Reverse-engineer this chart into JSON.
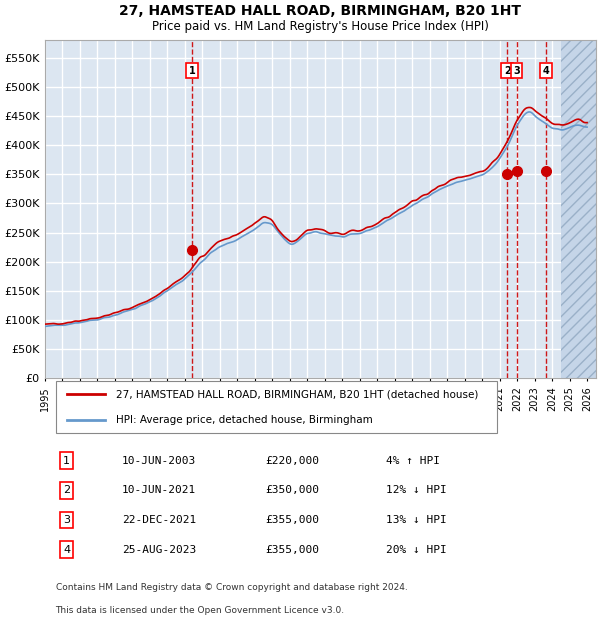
{
  "title": "27, HAMSTEAD HALL ROAD, BIRMINGHAM, B20 1HT",
  "subtitle": "Price paid vs. HM Land Registry's House Price Index (HPI)",
  "footer1": "Contains HM Land Registry data © Crown copyright and database right 2024.",
  "footer2": "This data is licensed under the Open Government Licence v3.0.",
  "legend_red": "27, HAMSTEAD HALL ROAD, BIRMINGHAM, B20 1HT (detached house)",
  "legend_blue": "HPI: Average price, detached house, Birmingham",
  "transactions": [
    {
      "num": 1,
      "date": "10-JUN-2003",
      "price": 220000,
      "pct": "4%",
      "dir": "↑",
      "x_year": 2003.44
    },
    {
      "num": 2,
      "date": "10-JUN-2021",
      "price": 350000,
      "pct": "12%",
      "dir": "↓",
      "x_year": 2021.44
    },
    {
      "num": 3,
      "date": "22-DEC-2021",
      "price": 355000,
      "pct": "13%",
      "dir": "↓",
      "x_year": 2021.97
    },
    {
      "num": 4,
      "date": "25-AUG-2023",
      "price": 355000,
      "pct": "20%",
      "dir": "↓",
      "x_year": 2023.65
    }
  ],
  "ylim": [
    0,
    580000
  ],
  "xlim_start": 1995.0,
  "xlim_end": 2026.5,
  "bg_color": "#dce6f1",
  "plot_bg": "#dce6f1",
  "red_color": "#cc0000",
  "blue_color": "#6699cc",
  "hatch_color": "#aabbcc",
  "grid_color": "#ffffff",
  "dashed_line_color": "#cc0000",
  "yticks": [
    0,
    50000,
    100000,
    150000,
    200000,
    250000,
    300000,
    350000,
    400000,
    450000,
    500000,
    550000
  ],
  "ytick_labels": [
    "£0",
    "£50K",
    "£100K",
    "£150K",
    "£200K",
    "£250K",
    "£300K",
    "£350K",
    "£400K",
    "£450K",
    "£500K",
    "£550K"
  ],
  "xticks": [
    1995,
    1996,
    1997,
    1998,
    1999,
    2000,
    2001,
    2002,
    2003,
    2004,
    2005,
    2006,
    2007,
    2008,
    2009,
    2010,
    2011,
    2012,
    2013,
    2014,
    2015,
    2016,
    2017,
    2018,
    2019,
    2020,
    2021,
    2022,
    2023,
    2024,
    2025,
    2026
  ]
}
